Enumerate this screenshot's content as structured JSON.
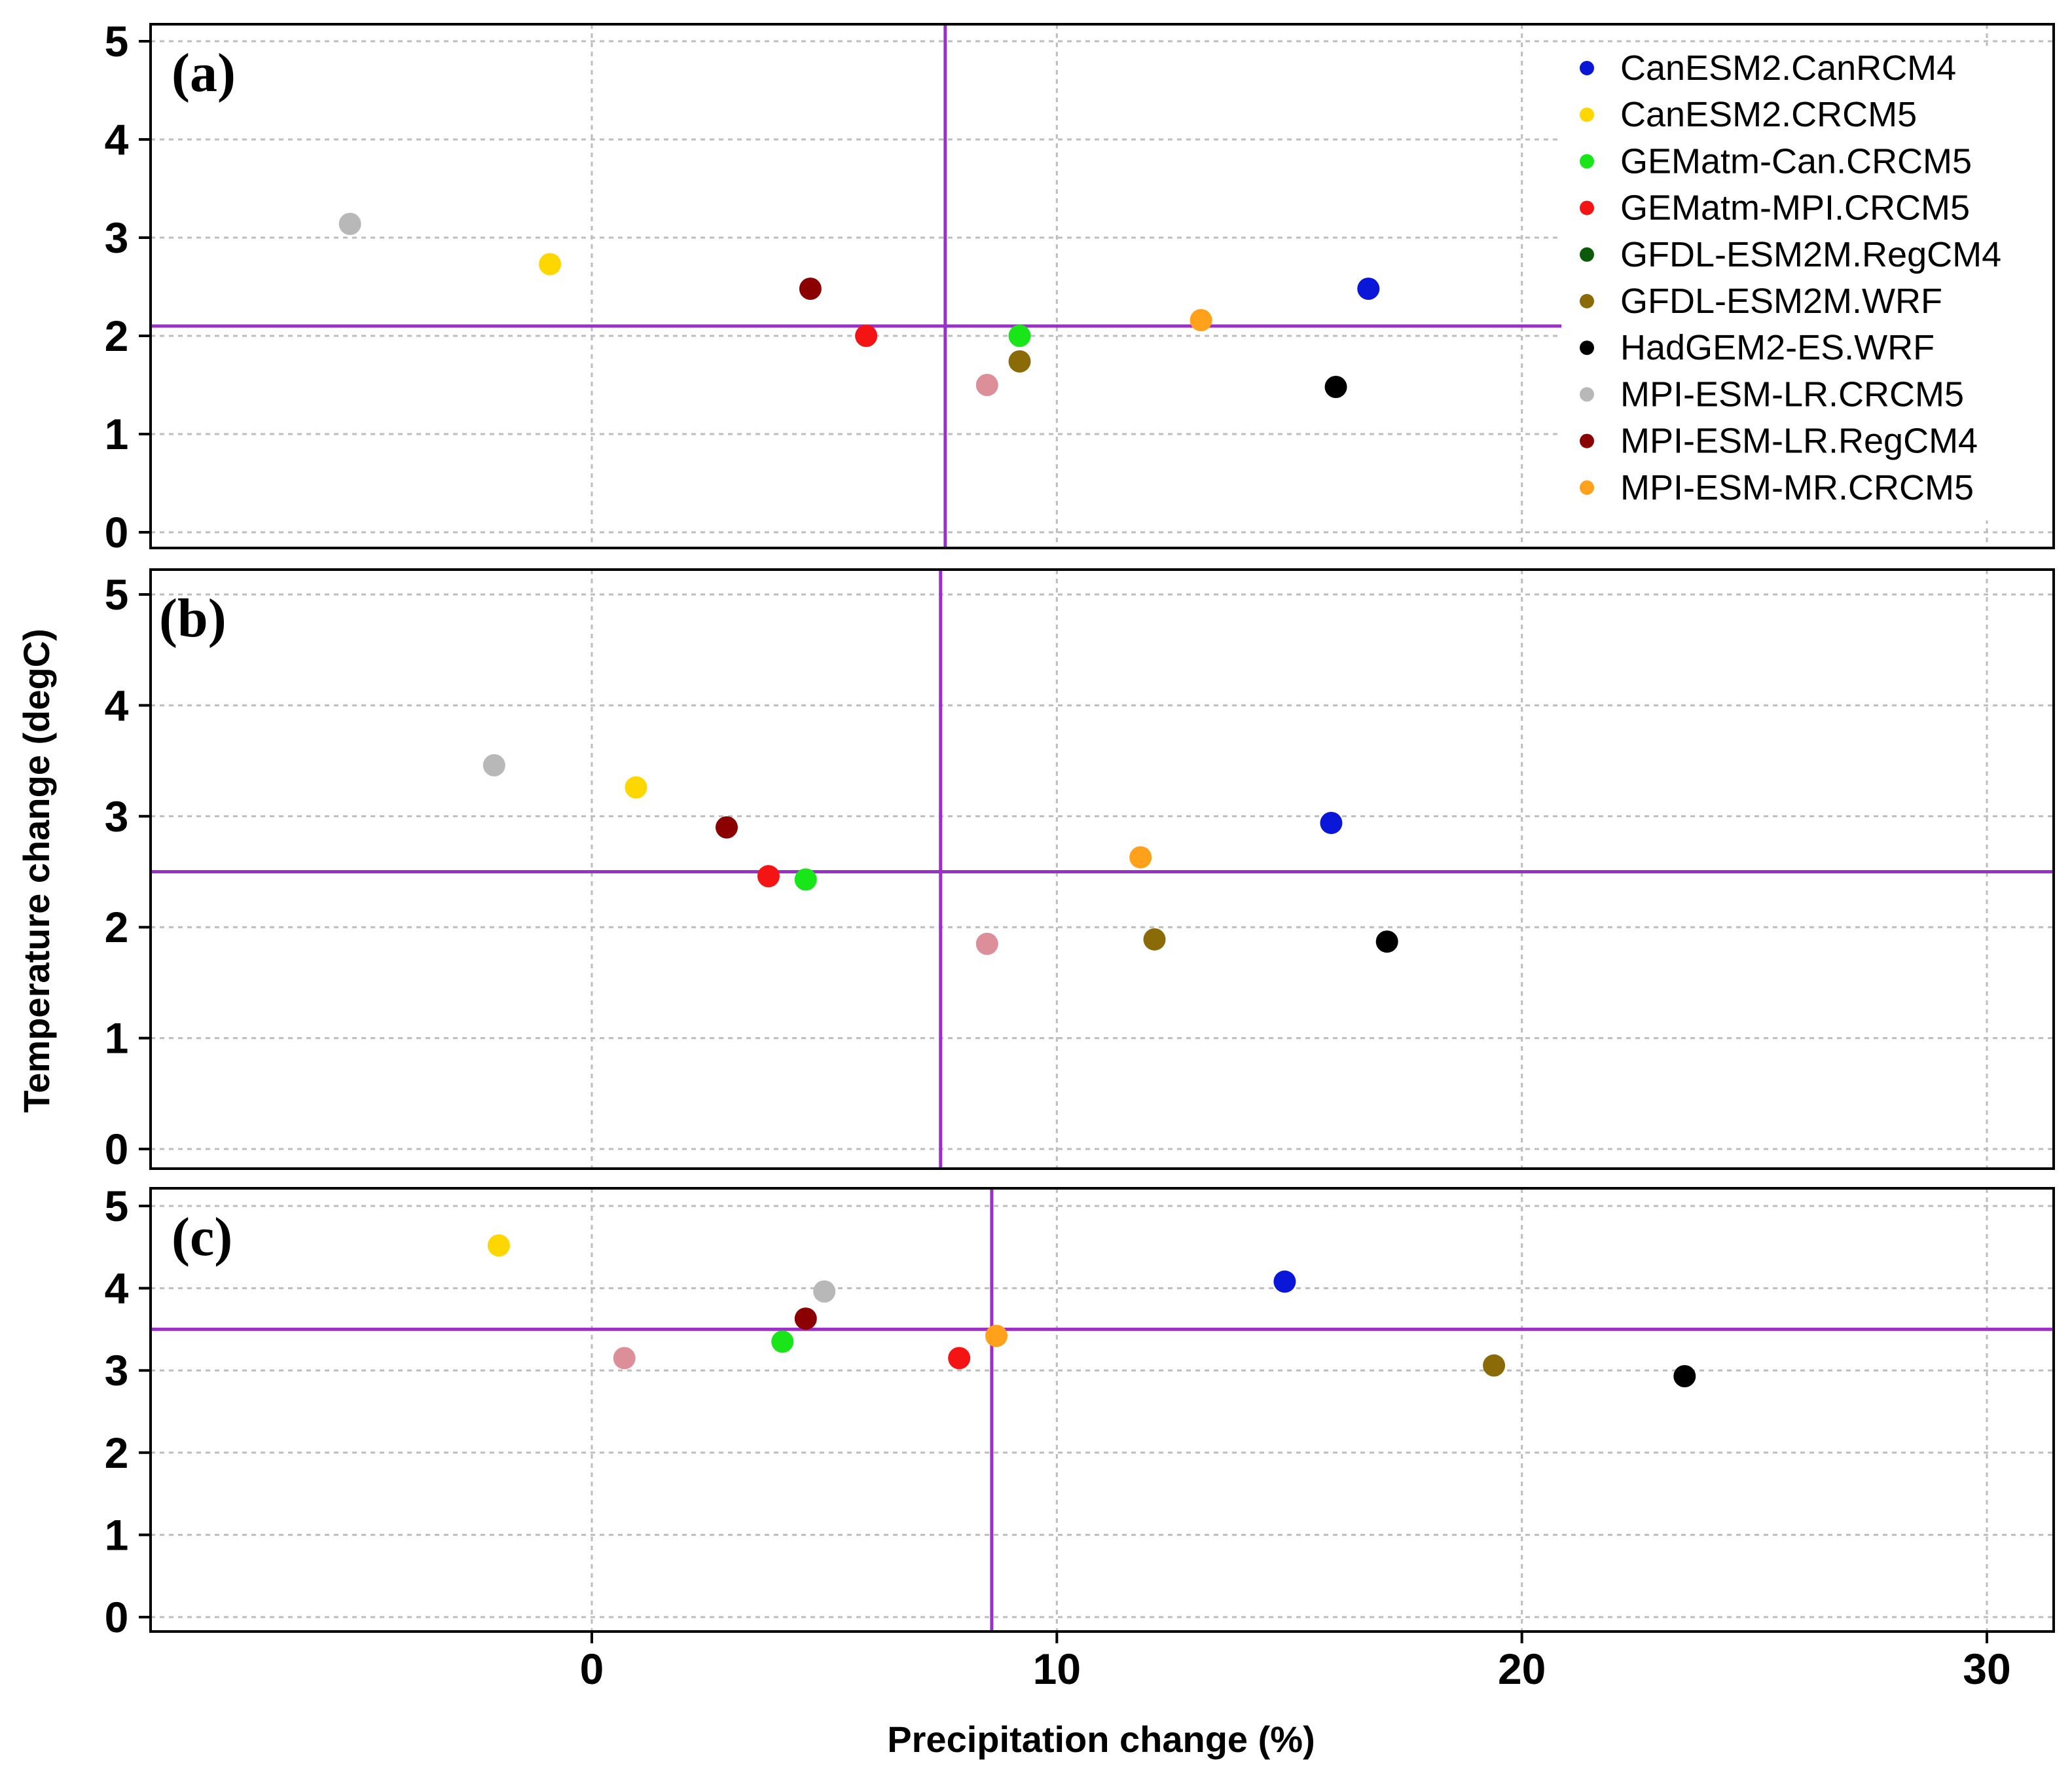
{
  "chart_data": {
    "type": "scatter",
    "xlabel": "Precipitation change (%)",
    "ylabel": "Temperature change (degC)",
    "xlim": [
      -9.5,
      31.5
    ],
    "ylim": [
      -0.2,
      5.2
    ],
    "xticks": [
      0,
      10,
      20,
      30
    ],
    "yticks": [
      0,
      1,
      2,
      3,
      4,
      5
    ],
    "grid": true,
    "legend_position": "top-right of panel (a)",
    "legend": [
      {
        "name": "CanESM2.CanRCM4",
        "color": "#0a16d8"
      },
      {
        "name": "CanESM2.CRCM5",
        "color": "#ffd700"
      },
      {
        "name": "GEMatm-Can.CRCM5",
        "color": "#19e619"
      },
      {
        "name": "GEMatm-MPI.CRCM5",
        "color": "#f51414"
      },
      {
        "name": "GFDL-ESM2M.RegCM4",
        "color": "#0a5a0a"
      },
      {
        "name": "GFDL-ESM2M.WRF",
        "color": "#8b6a08"
      },
      {
        "name": "HadGEM2-ES.WRF",
        "color": "#000000"
      },
      {
        "name": "MPI-ESM-LR.CRCM5",
        "color": "#b8b8b8"
      },
      {
        "name": "MPI-ESM-LR.RegCM4",
        "color": "#8b0000"
      },
      {
        "name": "MPI-ESM-MR.CRCM5",
        "color": "#ffa11a"
      }
    ],
    "panels": [
      {
        "label": "(a)",
        "mean_x": 7.6,
        "mean_y": 2.1,
        "points": [
          {
            "model": "CanESM2.CanRCM4",
            "x": 16.7,
            "y": 2.48,
            "color": "#0a16d8"
          },
          {
            "model": "CanESM2.CRCM5",
            "x": -0.9,
            "y": 2.73,
            "color": "#ffd700"
          },
          {
            "model": "GEMatm-Can.CRCM5",
            "x": 9.2,
            "y": 2.0,
            "color": "#19e619"
          },
          {
            "model": "GEMatm-MPI.CRCM5",
            "x": 5.9,
            "y": 2.0,
            "color": "#f51414"
          },
          {
            "model": "GFDL-ESM2M.WRF",
            "x": 9.2,
            "y": 1.74,
            "color": "#8b6a08"
          },
          {
            "model": "HadGEM2-ES.WRF",
            "x": 16.0,
            "y": 1.48,
            "color": "#000000"
          },
          {
            "model": "MPI-ESM-LR.CRCM5",
            "x": -5.2,
            "y": 3.14,
            "color": "#b8b8b8"
          },
          {
            "model": "MPI-ESM-LR.RegCM4",
            "x": 4.7,
            "y": 2.48,
            "color": "#8b0000"
          },
          {
            "model": "MPI-ESM-MR.CRCM5",
            "x": 13.1,
            "y": 2.16,
            "color": "#ffa11a"
          },
          {
            "model": "unlabelled (pink)",
            "x": 8.5,
            "y": 1.5,
            "color": "#dc8f98"
          }
        ]
      },
      {
        "label": "(b)",
        "mean_x": 7.5,
        "mean_y": 2.5,
        "points": [
          {
            "model": "CanESM2.CanRCM4",
            "x": 15.9,
            "y": 2.94,
            "color": "#0a16d8"
          },
          {
            "model": "CanESM2.CRCM5",
            "x": 0.95,
            "y": 3.26,
            "color": "#ffd700"
          },
          {
            "model": "GEMatm-Can.CRCM5",
            "x": 4.6,
            "y": 2.43,
            "color": "#19e619"
          },
          {
            "model": "GEMatm-MPI.CRCM5",
            "x": 3.8,
            "y": 2.46,
            "color": "#f51414"
          },
          {
            "model": "GFDL-ESM2M.WRF",
            "x": 12.1,
            "y": 1.89,
            "color": "#8b6a08"
          },
          {
            "model": "HadGEM2-ES.WRF",
            "x": 17.1,
            "y": 1.87,
            "color": "#000000"
          },
          {
            "model": "MPI-ESM-LR.CRCM5",
            "x": -2.1,
            "y": 3.46,
            "color": "#b8b8b8"
          },
          {
            "model": "MPI-ESM-LR.RegCM4",
            "x": 2.9,
            "y": 2.9,
            "color": "#8b0000"
          },
          {
            "model": "MPI-ESM-MR.CRCM5",
            "x": 11.8,
            "y": 2.63,
            "color": "#ffa11a"
          },
          {
            "model": "unlabelled (pink)",
            "x": 8.5,
            "y": 1.85,
            "color": "#dc8f98"
          }
        ]
      },
      {
        "label": "(c)",
        "mean_x": 8.6,
        "mean_y": 3.5,
        "points": [
          {
            "model": "CanESM2.CanRCM4",
            "x": 14.9,
            "y": 4.08,
            "color": "#0a16d8"
          },
          {
            "model": "CanESM2.CRCM5",
            "x": -2.0,
            "y": 4.52,
            "color": "#ffd700"
          },
          {
            "model": "GEMatm-Can.CRCM5",
            "x": 4.1,
            "y": 3.35,
            "color": "#19e619"
          },
          {
            "model": "GEMatm-MPI.CRCM5",
            "x": 7.9,
            "y": 3.15,
            "color": "#f51414"
          },
          {
            "model": "GFDL-ESM2M.WRF",
            "x": 19.4,
            "y": 3.06,
            "color": "#8b6a08"
          },
          {
            "model": "HadGEM2-ES.WRF",
            "x": 23.5,
            "y": 2.93,
            "color": "#000000"
          },
          {
            "model": "MPI-ESM-LR.CRCM5",
            "x": 5.0,
            "y": 3.96,
            "color": "#b8b8b8"
          },
          {
            "model": "MPI-ESM-LR.RegCM4",
            "x": 4.6,
            "y": 3.63,
            "color": "#8b0000"
          },
          {
            "model": "MPI-ESM-MR.CRCM5",
            "x": 8.7,
            "y": 3.42,
            "color": "#ffa11a"
          },
          {
            "model": "unlabelled (pink)",
            "x": 0.7,
            "y": 3.15,
            "color": "#dc8f98"
          }
        ]
      }
    ]
  }
}
